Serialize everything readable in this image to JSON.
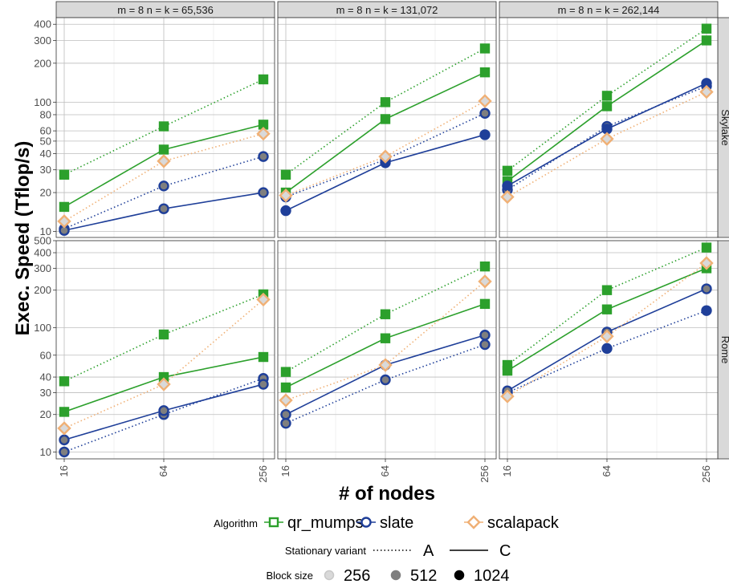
{
  "chart_data": {
    "type": "line",
    "xlabel": "# of nodes",
    "ylabel": "Exec. Speed (Tflop/s)",
    "y_scale": "log",
    "x_scale": "log",
    "x_ticks": [
      16,
      64,
      256
    ],
    "panel_titles": [
      "m = 8 n = k =  65,536",
      "m = 8 n = k = 131,072",
      "m = 8 n = k = 262,144"
    ],
    "row_titles": [
      "Skylake",
      "Rome"
    ],
    "rows": [
      {
        "y_range": [
          9,
          450
        ],
        "y_ticks": [
          10,
          20,
          30,
          40,
          50,
          60,
          80,
          100,
          200,
          300,
          400
        ],
        "y_tick_labels": [
          "10",
          "20",
          "30",
          "40",
          "50",
          "60",
          "80",
          "100",
          "200",
          "300",
          "400"
        ],
        "panels": [
          {
            "series": [
              {
                "algorithm": "qr_mumps",
                "variant": "A",
                "block_size": 1024,
                "x": [
                  16,
                  64,
                  256
                ],
                "y": [
                  27.5,
                  65,
                  150
                ]
              },
              {
                "algorithm": "qr_mumps",
                "variant": "C",
                "block_size": 1024,
                "x": [
                  16,
                  64,
                  256
                ],
                "y": [
                  15.5,
                  43,
                  67
                ]
              },
              {
                "algorithm": "slate",
                "variant": "A",
                "block_size": 512,
                "x": [
                  16,
                  64,
                  256
                ],
                "y": [
                  10.5,
                  22.5,
                  38
                ]
              },
              {
                "algorithm": "slate",
                "variant": "C",
                "block_size": 512,
                "x": [
                  16,
                  64,
                  256
                ],
                "y": [
                  10.2,
                  15,
                  20
                ]
              },
              {
                "algorithm": "scalapack",
                "variant": "A",
                "block_size": 256,
                "x": [
                  16,
                  64,
                  256
                ],
                "y": [
                  12,
                  35,
                  57
                ]
              }
            ]
          },
          {
            "series": [
              {
                "algorithm": "qr_mumps",
                "variant": "A",
                "block_size": 1024,
                "x": [
                  16,
                  64,
                  256
                ],
                "y": [
                  27.5,
                  100,
                  260
                ]
              },
              {
                "algorithm": "qr_mumps",
                "variant": "C",
                "block_size": 1024,
                "x": [
                  16,
                  64,
                  256
                ],
                "y": [
                  20,
                  74,
                  170
                ]
              },
              {
                "algorithm": "slate",
                "variant": "A",
                "block_size": 512,
                "x": [
                  16,
                  64,
                  256
                ],
                "y": [
                  18.5,
                  36,
                  82
                ]
              },
              {
                "algorithm": "slate",
                "variant": "C",
                "block_size": 1024,
                "x": [
                  16,
                  64,
                  256
                ],
                "y": [
                  14.5,
                  34,
                  56
                ]
              },
              {
                "algorithm": "scalapack",
                "variant": "A",
                "block_size": 256,
                "x": [
                  16,
                  64,
                  256
                ],
                "y": [
                  19,
                  38,
                  102
                ]
              }
            ]
          },
          {
            "series": [
              {
                "algorithm": "qr_mumps",
                "variant": "A",
                "block_size": 1024,
                "x": [
                  16,
                  64,
                  256
                ],
                "y": [
                  29.5,
                  112,
                  370
                ]
              },
              {
                "algorithm": "qr_mumps",
                "variant": "C",
                "block_size": 1024,
                "x": [
                  16,
                  64,
                  256
                ],
                "y": [
                  24.5,
                  93,
                  300
                ]
              },
              {
                "algorithm": "slate",
                "variant": "A",
                "block_size": 512,
                "x": [
                  16,
                  64,
                  256
                ],
                "y": [
                  21,
                  65,
                  133
                ]
              },
              {
                "algorithm": "slate",
                "variant": "C",
                "block_size": 1024,
                "x": [
                  16,
                  64,
                  256
                ],
                "y": [
                  22.5,
                  62,
                  140
                ]
              },
              {
                "algorithm": "scalapack",
                "variant": "A",
                "block_size": 256,
                "x": [
                  16,
                  64,
                  256
                ],
                "y": [
                  18.5,
                  52,
                  120
                ]
              }
            ]
          }
        ]
      },
      {
        "y_range": [
          8.8,
          500
        ],
        "y_ticks": [
          10,
          20,
          30,
          40,
          60,
          100,
          200,
          300,
          400,
          500
        ],
        "y_tick_labels": [
          "10",
          "20",
          "30",
          "40",
          "60",
          "100",
          "200",
          "300",
          "400",
          "500"
        ],
        "panels": [
          {
            "series": [
              {
                "algorithm": "qr_mumps",
                "variant": "A",
                "block_size": 1024,
                "x": [
                  16,
                  64,
                  256
                ],
                "y": [
                  37,
                  88,
                  185
                ]
              },
              {
                "algorithm": "qr_mumps",
                "variant": "C",
                "block_size": 1024,
                "x": [
                  16,
                  64,
                  256
                ],
                "y": [
                  21,
                  40,
                  58
                ]
              },
              {
                "algorithm": "slate",
                "variant": "A",
                "block_size": 512,
                "x": [
                  16,
                  64,
                  256
                ],
                "y": [
                  10,
                  20,
                  39
                ]
              },
              {
                "algorithm": "slate",
                "variant": "C",
                "block_size": 512,
                "x": [
                  16,
                  64,
                  256
                ],
                "y": [
                  12.5,
                  21.5,
                  35
                ]
              },
              {
                "algorithm": "scalapack",
                "variant": "A",
                "block_size": 256,
                "x": [
                  16,
                  64,
                  256
                ],
                "y": [
                  15.5,
                  35,
                  168
                ]
              }
            ]
          },
          {
            "series": [
              {
                "algorithm": "qr_mumps",
                "variant": "A",
                "block_size": 1024,
                "x": [
                  16,
                  64,
                  256
                ],
                "y": [
                  44,
                  128,
                  310
                ]
              },
              {
                "algorithm": "qr_mumps",
                "variant": "C",
                "block_size": 1024,
                "x": [
                  16,
                  64,
                  256
                ],
                "y": [
                  33,
                  82,
                  155
                ]
              },
              {
                "algorithm": "slate",
                "variant": "A",
                "block_size": 512,
                "x": [
                  16,
                  64,
                  256
                ],
                "y": [
                  17,
                  38,
                  73
                ]
              },
              {
                "algorithm": "slate",
                "variant": "C",
                "block_size": 512,
                "x": [
                  16,
                  64,
                  256
                ],
                "y": [
                  20,
                  50,
                  87
                ]
              },
              {
                "algorithm": "scalapack",
                "variant": "A",
                "block_size": 256,
                "x": [
                  16,
                  64,
                  256
                ],
                "y": [
                  26,
                  50,
                  235
                ]
              }
            ]
          },
          {
            "series": [
              {
                "algorithm": "qr_mumps",
                "variant": "A",
                "block_size": 1024,
                "x": [
                  16,
                  64,
                  256
                ],
                "y": [
                  50,
                  200,
                  440
                ]
              },
              {
                "algorithm": "qr_mumps",
                "variant": "C",
                "block_size": 1024,
                "x": [
                  16,
                  64,
                  256
                ],
                "y": [
                  45,
                  140,
                  300
                ]
              },
              {
                "algorithm": "slate",
                "variant": "A",
                "block_size": 1024,
                "x": [
                  16,
                  64,
                  256
                ],
                "y": [
                  30,
                  68,
                  137
                ]
              },
              {
                "algorithm": "slate",
                "variant": "C",
                "block_size": 512,
                "x": [
                  16,
                  64,
                  256
                ],
                "y": [
                  31,
                  92,
                  205
                ]
              },
              {
                "algorithm": "scalapack",
                "variant": "A",
                "block_size": 256,
                "x": [
                  16,
                  64,
                  256
                ],
                "y": [
                  28,
                  85,
                  330
                ]
              }
            ]
          }
        ]
      }
    ],
    "legend": {
      "algorithm": {
        "title": "Algorithm",
        "items": [
          {
            "label": "qr_mumps",
            "color": "#2ca02c",
            "shape": "square"
          },
          {
            "label": "slate",
            "color": "#1f3f99",
            "shape": "circle"
          },
          {
            "label": "scalapack",
            "color": "#f0b075",
            "shape": "diamond"
          }
        ]
      },
      "variant": {
        "title": "Stationary variant",
        "items": [
          {
            "label": "A",
            "line": "dotted"
          },
          {
            "label": "C",
            "line": "solid"
          }
        ]
      },
      "block_size": {
        "title": "Block size",
        "items": [
          {
            "label": "256",
            "fill": "#d9d9d9"
          },
          {
            "label": "512",
            "fill": "#7f7f7f"
          },
          {
            "label": "1024",
            "fill": "#000000"
          }
        ]
      }
    },
    "colors": {
      "qr_mumps": "#2ca02c",
      "slate": "#1f3f99",
      "scalapack": "#f0b075"
    }
  }
}
